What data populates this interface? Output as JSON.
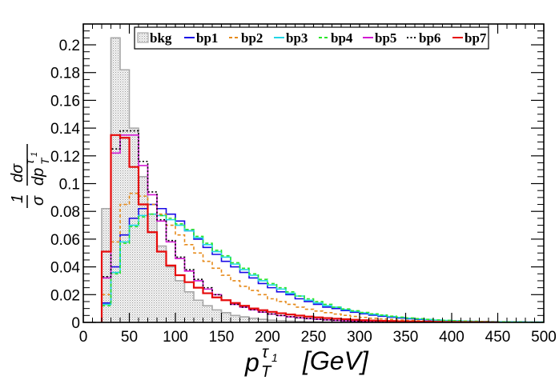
{
  "chart_data": {
    "type": "histogram",
    "x_label": "p_T^{τ_1}   [GeV]",
    "x_label_parts": {
      "p": "p",
      "sub": "T",
      "sup": "τ",
      "supsub": "1",
      "unit": "[GeV]"
    },
    "y_label": "1/σ dσ/dp_T^{τ_1}",
    "y_label_parts": {
      "one": "1",
      "dsigma": "dσ",
      "sigma": "σ",
      "dp": "dp",
      "sub": "T",
      "sup": "τ",
      "supsub": "1"
    },
    "xlim": [
      0,
      500
    ],
    "ylim": [
      0,
      0.215
    ],
    "bin_width": 10,
    "x_ticks": [
      0,
      50,
      100,
      150,
      200,
      250,
      300,
      350,
      400,
      450,
      500
    ],
    "x_tick_labels": [
      "0",
      "50",
      "100",
      "150",
      "200",
      "250",
      "300",
      "350",
      "400",
      "450",
      "500"
    ],
    "y_ticks": [
      0,
      0.02,
      0.04,
      0.06,
      0.08,
      0.1,
      0.12,
      0.14,
      0.16,
      0.18,
      0.2
    ],
    "y_tick_labels": [
      "0",
      "0.02",
      "0.04",
      "0.06",
      "0.08",
      "0.1",
      "0.12",
      "0.14",
      "0.16",
      "0.18",
      "0.2"
    ],
    "series": [
      {
        "name": "bkg",
        "label": "bkg",
        "color": "#a8a8a8",
        "style": "filled-hatched",
        "x_start": 20,
        "values": [
          0.082,
          0.205,
          0.182,
          0.14,
          0.105,
          0.078,
          0.055,
          0.04,
          0.03,
          0.022,
          0.016,
          0.012,
          0.009,
          0.007,
          0.005,
          0.004,
          0.003,
          0.0022,
          0.0016,
          0.0012,
          0.0009,
          0.0007,
          0.0005,
          0.0004,
          0.0003,
          0.0002,
          0.0002,
          0.0001
        ]
      },
      {
        "name": "bp1",
        "label": "bp1",
        "color": "#1a0ae6",
        "style": "solid",
        "x_start": 20,
        "values": [
          0.014,
          0.04,
          0.063,
          0.075,
          0.082,
          0.085,
          0.082,
          0.078,
          0.073,
          0.066,
          0.06,
          0.054,
          0.049,
          0.044,
          0.04,
          0.036,
          0.032,
          0.028,
          0.025,
          0.022,
          0.02,
          0.017,
          0.015,
          0.013,
          0.011,
          0.01,
          0.0085,
          0.0073,
          0.0062,
          0.0052,
          0.0044,
          0.0037,
          0.0031,
          0.0026,
          0.0022,
          0.0018,
          0.0015,
          0.0012,
          0.001,
          0.0008,
          0.0007,
          0.0006,
          0.0005,
          0.0004,
          0.0003,
          0.0003,
          0.0002,
          0.0002
        ]
      },
      {
        "name": "bp2",
        "label": "bp2",
        "color": "#e68a1a",
        "style": "dashed",
        "x_start": 20,
        "values": [
          0.02,
          0.058,
          0.085,
          0.093,
          0.091,
          0.085,
          0.078,
          0.07,
          0.063,
          0.056,
          0.05,
          0.044,
          0.039,
          0.034,
          0.03,
          0.026,
          0.023,
          0.02,
          0.017,
          0.015,
          0.013,
          0.011,
          0.0095,
          0.0082,
          0.007,
          0.006,
          0.0051,
          0.0043,
          0.0036,
          0.003,
          0.0025,
          0.0021,
          0.0017,
          0.0014,
          0.0012,
          0.001,
          0.0008,
          0.0007,
          0.0005,
          0.0004,
          0.0003,
          0.0003,
          0.0002,
          0.0002
        ]
      },
      {
        "name": "bp3",
        "label": "bp3",
        "color": "#22d6e6",
        "style": "solid",
        "x_start": 20,
        "values": [
          0.013,
          0.036,
          0.058,
          0.07,
          0.077,
          0.078,
          0.077,
          0.074,
          0.07,
          0.066,
          0.061,
          0.056,
          0.051,
          0.047,
          0.042,
          0.038,
          0.034,
          0.03,
          0.027,
          0.024,
          0.021,
          0.019,
          0.016,
          0.014,
          0.012,
          0.011,
          0.0093,
          0.008,
          0.0069,
          0.0059,
          0.005,
          0.0042,
          0.0036,
          0.003,
          0.0025,
          0.0021,
          0.0017,
          0.0014,
          0.0012,
          0.001,
          0.0008,
          0.0006,
          0.0005,
          0.0004,
          0.0003,
          0.0003,
          0.0002,
          0.0002
        ]
      },
      {
        "name": "bp4",
        "label": "bp4",
        "color": "#2ae62a",
        "style": "dashed",
        "x_start": 20,
        "values": [
          0.012,
          0.035,
          0.057,
          0.069,
          0.076,
          0.078,
          0.077,
          0.075,
          0.071,
          0.067,
          0.062,
          0.057,
          0.052,
          0.048,
          0.043,
          0.039,
          0.035,
          0.031,
          0.028,
          0.025,
          0.022,
          0.019,
          0.017,
          0.015,
          0.013,
          0.011,
          0.0097,
          0.0084,
          0.0072,
          0.0062,
          0.0053,
          0.0045,
          0.0038,
          0.0032,
          0.0027,
          0.0022,
          0.0018,
          0.0015,
          0.0012,
          0.001,
          0.0008,
          0.0007,
          0.0005,
          0.0004,
          0.0003,
          0.0003,
          0.0002,
          0.0002
        ]
      },
      {
        "name": "bp5",
        "label": "bp5",
        "color": "#d21ad2",
        "style": "solid",
        "x_start": 20,
        "values": [
          0.032,
          0.122,
          0.135,
          0.135,
          0.113,
          0.092,
          0.073,
          0.058,
          0.046,
          0.037,
          0.03,
          0.024,
          0.02,
          0.016,
          0.013,
          0.011,
          0.009,
          0.0074,
          0.006,
          0.0049,
          0.004,
          0.0033,
          0.0027,
          0.0022,
          0.0018,
          0.0014,
          0.0011,
          0.0009,
          0.0007,
          0.0006,
          0.0005,
          0.0004,
          0.0003,
          0.0002,
          0.0002
        ]
      },
      {
        "name": "bp6",
        "label": "bp6",
        "color": "#000000",
        "style": "dotted",
        "x_start": 20,
        "values": [
          0.033,
          0.125,
          0.138,
          0.138,
          0.116,
          0.094,
          0.074,
          0.059,
          0.047,
          0.038,
          0.031,
          0.025,
          0.02,
          0.016,
          0.013,
          0.011,
          0.0092,
          0.0075,
          0.0061,
          0.005,
          0.0041,
          0.0034,
          0.0028,
          0.0023,
          0.0018,
          0.0015,
          0.0012,
          0.0009,
          0.0007,
          0.0006,
          0.0005,
          0.0004,
          0.0003,
          0.0002,
          0.0002
        ]
      },
      {
        "name": "bp7",
        "label": "bp7",
        "color": "#e60a0a",
        "style": "solid",
        "x_start": 20,
        "values": [
          0.051,
          0.135,
          0.133,
          0.112,
          0.085,
          0.065,
          0.051,
          0.041,
          0.034,
          0.029,
          0.025,
          0.021,
          0.018,
          0.016,
          0.014,
          0.012,
          0.01,
          0.0088,
          0.0076,
          0.0066,
          0.0057,
          0.0049,
          0.0042,
          0.0036,
          0.0031,
          0.0027,
          0.0023,
          0.0019,
          0.0016,
          0.0014,
          0.0012,
          0.001,
          0.0008,
          0.0007,
          0.0006,
          0.0005,
          0.0004,
          0.0003,
          0.0003,
          0.0002,
          0.0002,
          0.0002,
          0.0001
        ]
      }
    ]
  }
}
